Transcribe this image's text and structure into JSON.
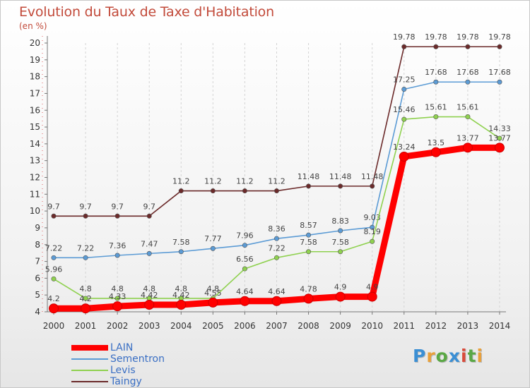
{
  "title": "Evolution du Taux de Taxe d'Habitation",
  "unit_label": "(en %)",
  "logo": {
    "text": "Proxiti",
    "colors": [
      "#3b8fd4",
      "#e8a03a",
      "#5aa845",
      "#3b8fd4",
      "#d94a3a",
      "#5aa845",
      "#e8a03a"
    ]
  },
  "colors": {
    "LAIN": "#ff0000",
    "Sementron": "#5b9bd5",
    "Levis": "#8fd14f",
    "Taingy": "#6b2a2a"
  },
  "chart_data": {
    "type": "line",
    "title": "Evolution du Taux de Taxe d'Habitation",
    "ylabel": "(en %)",
    "xlabel": "",
    "ylim": [
      4,
      20
    ],
    "yticks": [
      4,
      5,
      6,
      7,
      8,
      9,
      10,
      11,
      12,
      13,
      14,
      15,
      16,
      17,
      18,
      19,
      20
    ],
    "grid": "vertical dashed",
    "legend_position": "bottom-left",
    "x": [
      "2000",
      "2001",
      "2002",
      "2003",
      "2004",
      "2005",
      "2006",
      "2007",
      "2008",
      "2009",
      "2010",
      "2011",
      "2012",
      "2013",
      "2014"
    ],
    "series": [
      {
        "name": "Taingy",
        "values": [
          9.7,
          9.7,
          9.7,
          9.7,
          11.2,
          11.2,
          11.2,
          11.2,
          11.48,
          11.48,
          11.48,
          19.78,
          19.78,
          19.78,
          19.78
        ],
        "labels": [
          "9.7",
          "9.7",
          "9.7",
          "9.7",
          "11.2",
          "11.2",
          "11.2",
          "11.2",
          "11.48",
          "11.48",
          "11.48",
          "19.78",
          "19.78",
          "19.78",
          "19.78"
        ]
      },
      {
        "name": "Sementron",
        "values": [
          7.22,
          7.22,
          7.36,
          7.47,
          7.58,
          7.77,
          7.96,
          8.36,
          8.57,
          8.83,
          9.03,
          17.25,
          17.68,
          17.68,
          17.68
        ],
        "labels": [
          "7.22",
          "7.22",
          "7.36",
          "7.47",
          "7.58",
          "7.77",
          "7.96",
          "8.36",
          "8.57",
          "8.83",
          "9.03",
          "17.25",
          "17.68",
          "17.68",
          "17.68"
        ]
      },
      {
        "name": "Levis",
        "values": [
          5.96,
          4.8,
          4.8,
          4.8,
          4.8,
          4.8,
          6.56,
          7.22,
          7.58,
          7.58,
          8.19,
          15.46,
          15.61,
          15.61,
          14.33
        ],
        "labels": [
          "5.96",
          "4.8",
          "4.8",
          "4.8",
          "4.8",
          "4.8",
          "6.56",
          "7.22",
          "7.58",
          "7.58",
          "8.19",
          "15.46",
          "15.61",
          "15.61",
          "14.33"
        ]
      },
      {
        "name": "LAIN",
        "values": [
          4.2,
          4.2,
          4.33,
          4.42,
          4.42,
          4.55,
          4.64,
          4.64,
          4.78,
          4.9,
          4.9,
          13.24,
          13.5,
          13.77,
          13.77
        ],
        "labels": [
          "4.2",
          "4.2",
          "4.33",
          "4.42",
          "4.42",
          "4.55",
          "4.64",
          "4.64",
          "4.78",
          "4.9",
          "4.9",
          "13.24",
          "13.5",
          "13.77",
          "13.77"
        ]
      }
    ],
    "legend": [
      "LAIN",
      "Sementron",
      "Levis",
      "Taingy"
    ]
  }
}
